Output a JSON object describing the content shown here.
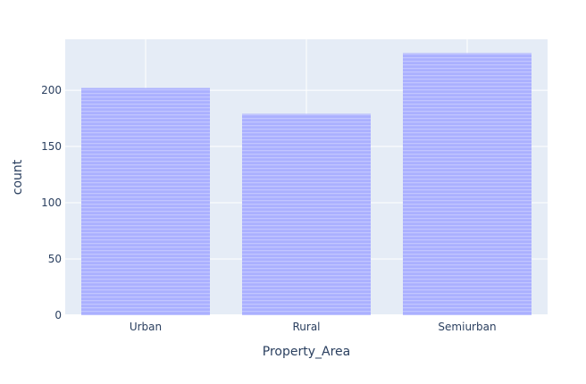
{
  "chart_data": {
    "type": "bar",
    "categories": [
      "Urban",
      "Rural",
      "Semiurban"
    ],
    "values": [
      202,
      179,
      233
    ],
    "title": "",
    "xlabel": "Property_Area",
    "ylabel": "count",
    "ylim": [
      0,
      245.3
    ],
    "yticks": [
      0,
      50,
      100,
      150,
      200
    ],
    "grid": true,
    "colors": {
      "plot_bg": "#e5ecf6",
      "grid": "#ffffff",
      "bar_fill": "#aab0ff",
      "bar_stripe": "#c2c6ff",
      "text": "#2a3f5f"
    }
  }
}
